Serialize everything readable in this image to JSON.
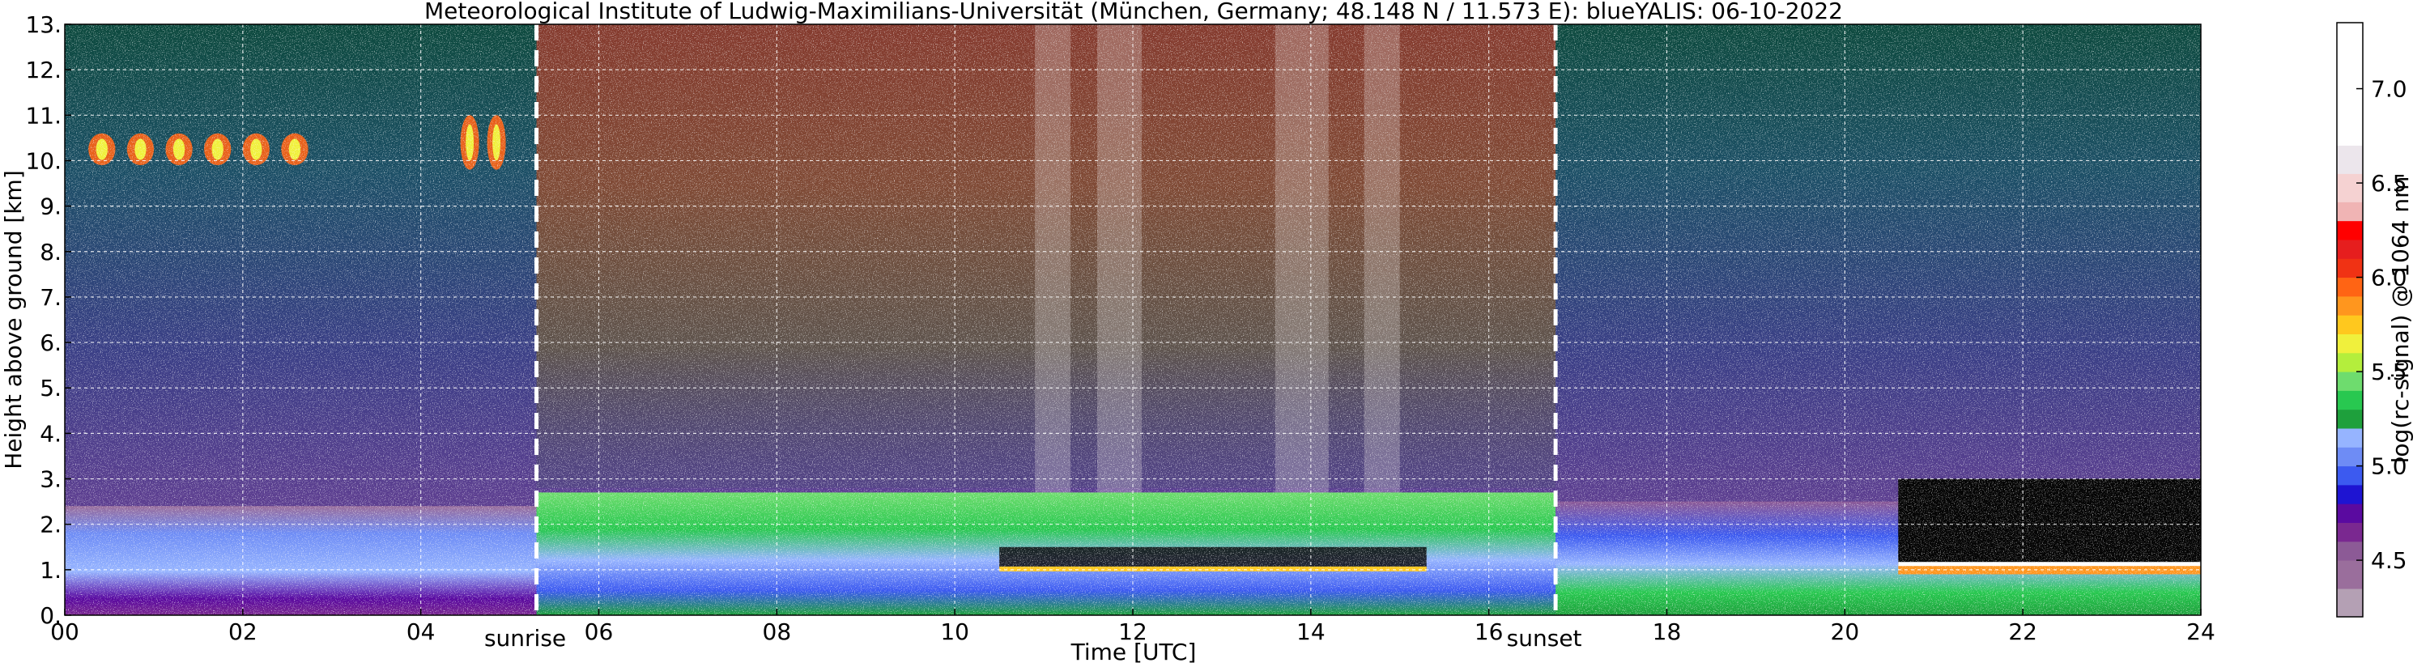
{
  "chart_data": {
    "type": "heatmap",
    "title": "Meteorological Institute of Ludwig-Maximilians-Universität (München, Germany; 48.148 N / 11.573 E):    blueYALIS: 06-10-2022",
    "xlabel": "Time [UTC]",
    "ylabel": "Height above ground [km]",
    "xlim": [
      0,
      24
    ],
    "ylim": [
      0,
      13
    ],
    "x_ticks": [
      0,
      2,
      4,
      6,
      8,
      10,
      12,
      14,
      16,
      18,
      20,
      22,
      24
    ],
    "x_tick_labels": [
      "00",
      "02",
      "04",
      "06",
      "08",
      "10",
      "12",
      "14",
      "16",
      "18",
      "20",
      "22",
      "24"
    ],
    "y_ticks": [
      0,
      1,
      2,
      3,
      4,
      5,
      6,
      7,
      8,
      9,
      10,
      11,
      12,
      13
    ],
    "y_tick_labels": [
      "0.",
      "1.",
      "2.",
      "3.",
      "4.",
      "5.",
      "6.",
      "7.",
      "8.",
      "9.",
      "10.",
      "11.",
      "12.",
      "13."
    ],
    "grid": true,
    "vlines": [
      {
        "x": 5.3,
        "label": "sunrise",
        "style": "dashed",
        "color": "#ffffff"
      },
      {
        "x": 16.75,
        "label": "sunset",
        "style": "dashed",
        "color": "#ffffff"
      }
    ],
    "colorbar": {
      "label": "log(rc-signal) @ 1064 nm",
      "range": [
        4.2,
        7.35
      ],
      "ticks": [
        4.5,
        5.0,
        5.5,
        6.0,
        6.5,
        7.0
      ],
      "tick_labels": [
        "4.5",
        "5.0",
        "5.5",
        "6.0",
        "6.5",
        "7.0"
      ],
      "levels": [
        {
          "from": 4.2,
          "to": 4.35,
          "color": "#b4a0b4"
        },
        {
          "from": 4.35,
          "to": 4.5,
          "color": "#9a6e9c"
        },
        {
          "from": 4.5,
          "to": 4.6,
          "color": "#8c5a96"
        },
        {
          "from": 4.6,
          "to": 4.7,
          "color": "#7a2890"
        },
        {
          "from": 4.7,
          "to": 4.8,
          "color": "#5a0aa0"
        },
        {
          "from": 4.8,
          "to": 4.9,
          "color": "#1e14d2"
        },
        {
          "from": 4.9,
          "to": 5.0,
          "color": "#3c5af0"
        },
        {
          "from": 5.0,
          "to": 5.1,
          "color": "#6e8cf5"
        },
        {
          "from": 5.1,
          "to": 5.2,
          "color": "#96b4ff"
        },
        {
          "from": 5.2,
          "to": 5.3,
          "color": "#1ea03c"
        },
        {
          "from": 5.3,
          "to": 5.4,
          "color": "#28c850"
        },
        {
          "from": 5.4,
          "to": 5.5,
          "color": "#6edc6e"
        },
        {
          "from": 5.5,
          "to": 5.6,
          "color": "#b4ee3c"
        },
        {
          "from": 5.6,
          "to": 5.7,
          "color": "#f0f03c"
        },
        {
          "from": 5.7,
          "to": 5.8,
          "color": "#ffc81e"
        },
        {
          "from": 5.8,
          "to": 5.9,
          "color": "#ff961e"
        },
        {
          "from": 5.9,
          "to": 6.0,
          "color": "#ff6414"
        },
        {
          "from": 6.0,
          "to": 6.1,
          "color": "#f03214"
        },
        {
          "from": 6.1,
          "to": 6.2,
          "color": "#e61e1e"
        },
        {
          "from": 6.2,
          "to": 6.3,
          "color": "#ff0000"
        },
        {
          "from": 6.3,
          "to": 6.4,
          "color": "#f0b4b4"
        },
        {
          "from": 6.4,
          "to": 6.55,
          "color": "#f5d2d2"
        },
        {
          "from": 6.55,
          "to": 6.7,
          "color": "#ece6ec"
        },
        {
          "from": 6.7,
          "to": 7.35,
          "color": "#ffffff"
        }
      ]
    },
    "features": [
      {
        "name": "cirrus",
        "x": [
          0.2,
          2.8
        ],
        "y": [
          9.9,
          10.6
        ]
      },
      {
        "name": "cirrus",
        "x": [
          4.4,
          5.0
        ],
        "y": [
          9.8,
          11.0
        ]
      },
      {
        "name": "cloud-base-line",
        "x": [
          10.5,
          15.3
        ],
        "y": [
          1.0,
          1.5
        ]
      },
      {
        "name": "low-cloud",
        "x": [
          20.6,
          24.0
        ],
        "y": [
          0.9,
          1.1
        ]
      }
    ]
  }
}
